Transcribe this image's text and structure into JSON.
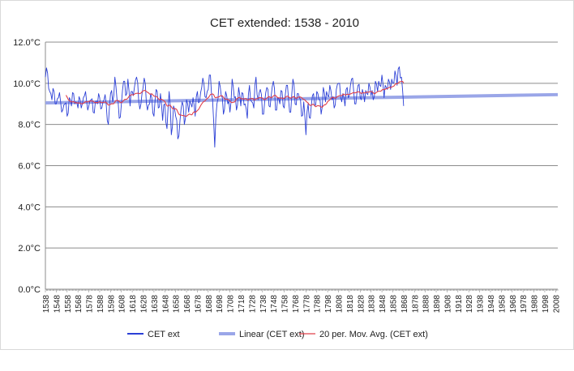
{
  "chart_data": {
    "type": "line",
    "title": "CET extended:  1538 - 2010",
    "xlabel": "",
    "ylabel": "",
    "x_range": [
      1538,
      2010
    ],
    "ylim": [
      0,
      12
    ],
    "y_ticks": [
      0,
      2,
      4,
      6,
      8,
      10,
      12
    ],
    "y_tick_labels": [
      "0.0°C",
      "2.0°C",
      "4.0°C",
      "6.0°C",
      "8.0°C",
      "10.0°C",
      "12.0°C"
    ],
    "x_tick_labels": [
      "1538",
      "1548",
      "1558",
      "1568",
      "1578",
      "1588",
      "1598",
      "1608",
      "1618",
      "1628",
      "1638",
      "1648",
      "1658",
      "1668",
      "1678",
      "1688",
      "1698",
      "1708",
      "1718",
      "1728",
      "1738",
      "1748",
      "1758",
      "1768",
      "1778",
      "1788",
      "1798",
      "1808",
      "1818",
      "1828",
      "1838",
      "1848",
      "1858",
      "1868",
      "1878",
      "1888",
      "1898",
      "1908",
      "1918",
      "1928",
      "1938",
      "1948",
      "1958",
      "1968",
      "1978",
      "1988",
      "1998",
      "2008"
    ],
    "grid": "horizontal",
    "legend_position": "bottom",
    "series": [
      {
        "name": "CET ext",
        "color": "#2b3fd6",
        "x_start": 1538,
        "x_step": 1,
        "values_sampled_every_2_years": [
          10.3,
          10.5,
          9.6,
          9.2,
          9.6,
          9.0,
          9.3,
          9.1,
          8.7,
          9.0,
          8.4,
          9.3,
          8.9,
          9.5,
          9.1,
          8.8,
          9.2,
          9.0,
          9.4,
          9.1,
          8.9,
          9.2,
          8.6,
          9.1,
          9.0,
          9.3,
          8.8,
          9.2,
          9.0,
          8.0,
          9.5,
          9.1,
          10.3,
          9.2,
          8.3,
          9.0,
          10.1,
          9.4,
          10.2,
          8.9,
          9.6,
          9.8,
          10.3,
          9.1,
          9.0,
          9.8,
          10.0,
          8.7,
          9.0,
          9.3,
          8.4,
          9.7,
          8.8,
          9.5,
          8.2,
          9.0,
          7.8,
          9.6,
          7.5,
          8.9,
          8.4,
          7.3,
          8.2,
          9.1,
          8.0,
          9.2,
          8.6,
          9.0,
          9.3,
          8.4,
          9.6,
          9.1,
          9.8,
          10.0,
          9.3,
          9.7,
          10.4,
          9.2,
          6.9,
          9.0,
          10.1,
          9.4,
          8.5,
          9.6,
          9.0,
          8.6,
          10.2,
          9.3,
          8.7,
          9.8,
          8.9,
          9.5,
          9.0,
          8.3,
          9.9,
          9.1,
          8.8,
          10.3,
          9.2,
          9.7,
          8.5,
          9.1,
          9.8,
          8.9,
          9.4,
          10.1,
          8.7,
          9.3,
          9.0,
          9.6,
          8.8,
          9.9,
          9.2,
          8.6,
          10.2,
          9.0,
          9.5,
          9.3,
          8.4,
          9.1,
          7.5,
          9.0,
          8.3,
          9.4,
          8.9,
          9.6,
          9.2,
          8.5,
          9.8,
          9.1,
          9.4,
          9.9,
          9.2,
          8.8,
          9.7,
          10.0,
          9.3,
          9.5,
          8.9,
          9.8,
          9.4,
          10.2,
          9.6,
          9.0,
          9.9,
          9.3,
          9.7,
          9.1,
          9.5,
          10.0,
          9.4,
          9.2,
          10.1,
          9.6,
          9.9,
          10.4,
          9.3,
          9.8,
          10.2,
          9.7,
          10.0,
          10.6,
          9.9,
          10.8,
          10.3,
          8.9
        ]
      },
      {
        "name": "Linear (CET ext)",
        "color": "#9aa6e8",
        "start_value": 9.05,
        "end_value": 9.45
      },
      {
        "name": "20 per. Mov. Avg. (CET ext)",
        "color": "#e0404a"
      }
    ]
  },
  "legend": {
    "items": [
      {
        "label": "CET ext",
        "color": "#2b3fd6"
      },
      {
        "label": "Linear (CET ext)",
        "color": "#9aa6e8"
      },
      {
        "label": "20 per. Mov. Avg. (CET ext)",
        "color": "#e0404a"
      }
    ]
  }
}
